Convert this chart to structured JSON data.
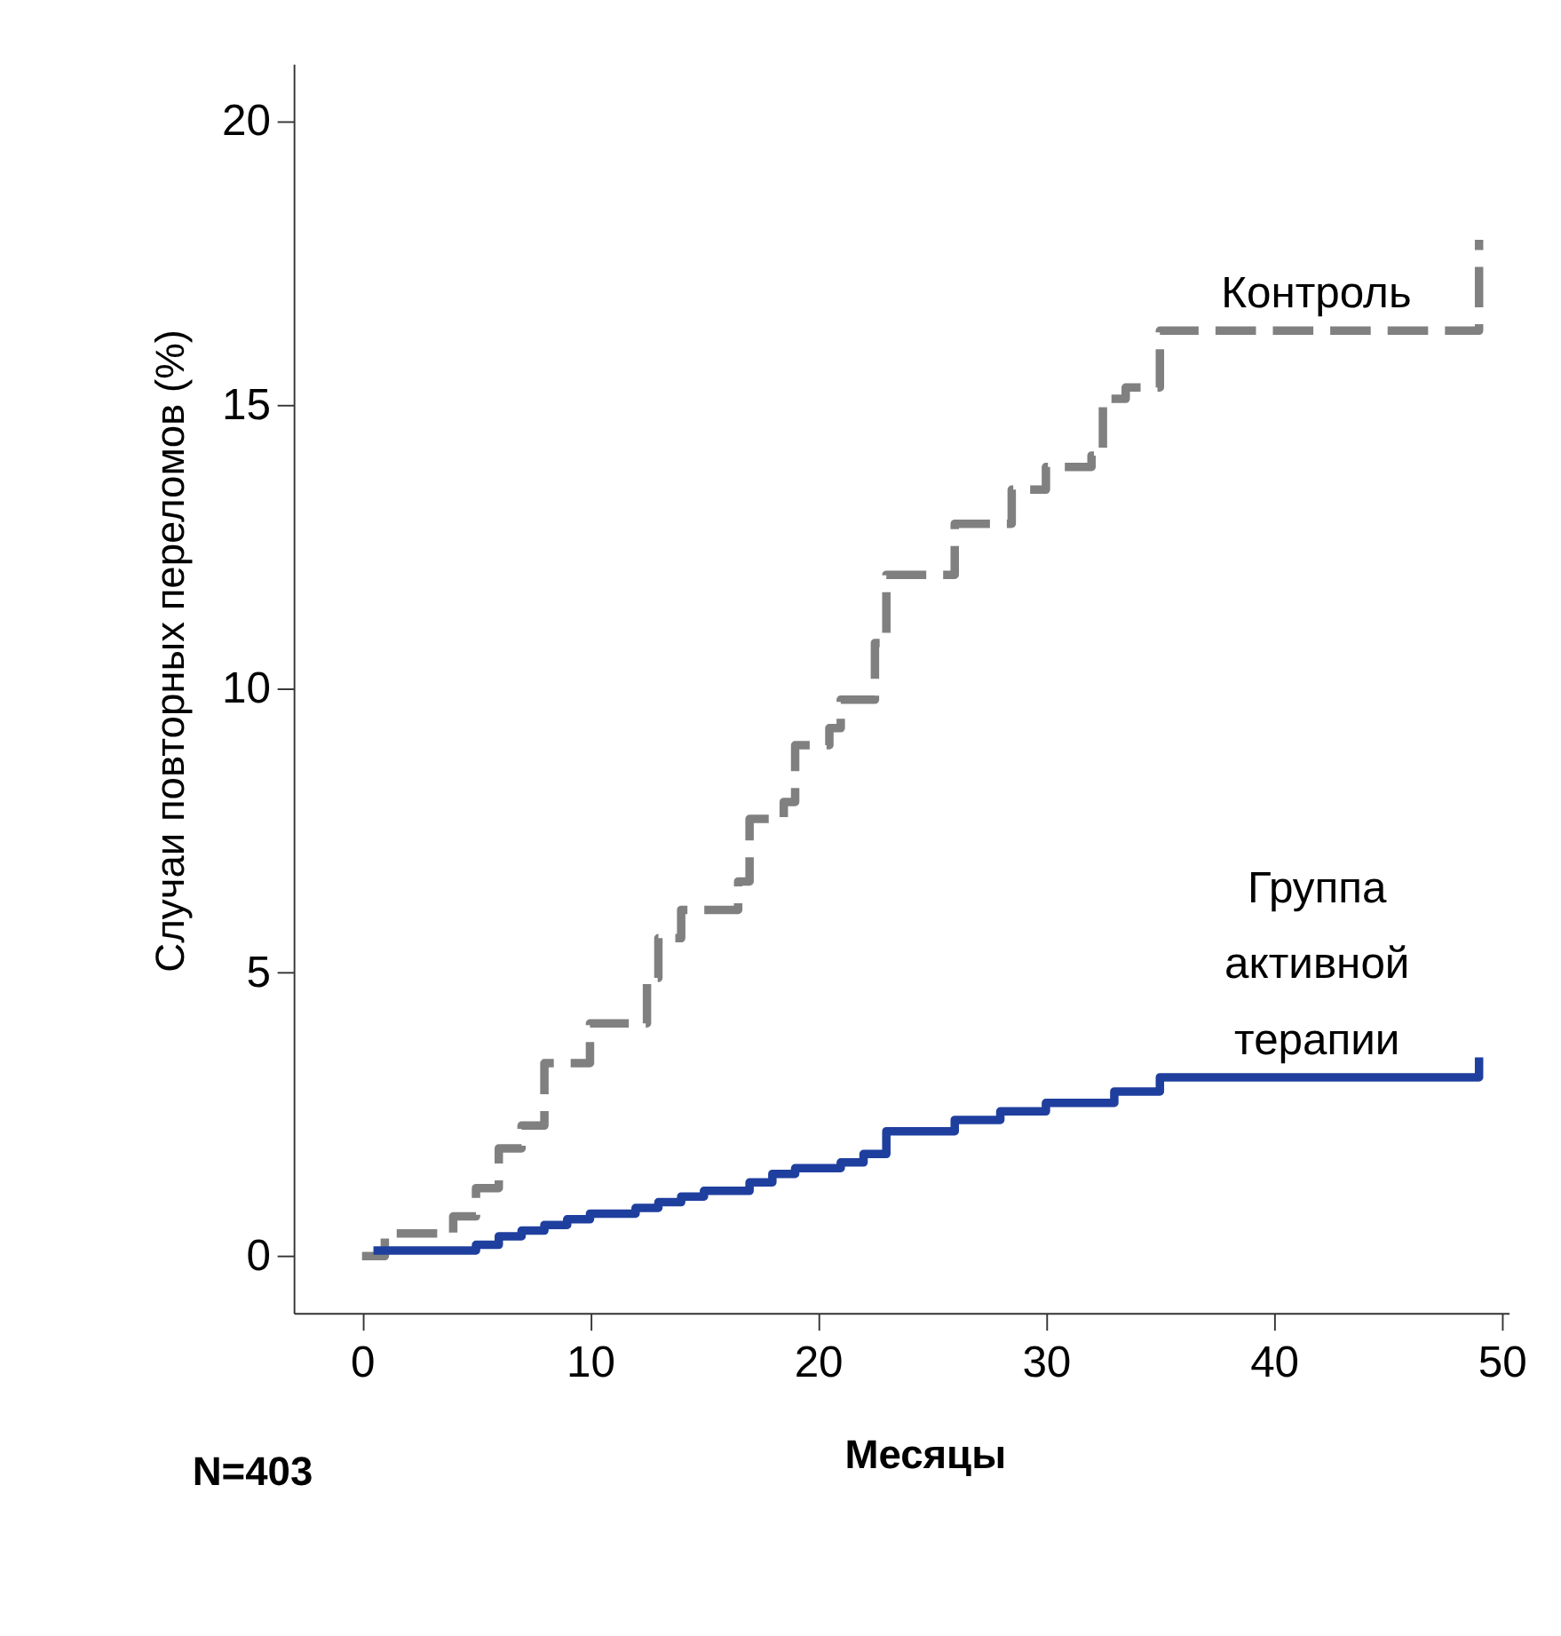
{
  "chart_data": {
    "type": "step",
    "ylabel": "Случаи повторных переломов (%)",
    "xlabel": "Месяцы",
    "xlim": [
      -3,
      50.3
    ],
    "ylim": [
      -1,
      21
    ],
    "xticks": [
      0,
      10,
      20,
      30,
      40,
      50
    ],
    "yticks": [
      0,
      5,
      10,
      15,
      20
    ],
    "grid": false,
    "marker": "none",
    "annotations": [
      "N=403"
    ],
    "series": [
      {
        "name": "Контроль",
        "color": "#808080",
        "line_style": "dashed",
        "x": [
          0,
          1,
          4,
          5,
          6,
          7,
          8,
          10,
          12.5,
          13,
          14,
          16.5,
          17,
          18.5,
          19,
          20.5,
          21,
          22.5,
          23,
          26,
          28.5,
          30,
          32,
          32.5,
          33.5,
          35,
          49,
          49
        ],
        "values": [
          0,
          0.4,
          0.7,
          1.2,
          1.9,
          2.3,
          3.4,
          4.1,
          4.9,
          5.6,
          6.1,
          6.6,
          7.7,
          8.0,
          9.0,
          9.3,
          9.8,
          10.8,
          12.0,
          12.9,
          13.5,
          13.9,
          14.1,
          15.1,
          15.3,
          16.3,
          16.3,
          17.9
        ]
      },
      {
        "name": "Группа активной терапии",
        "color": "#1f3f9f",
        "line_style": "solid",
        "x": [
          0.5,
          4,
          5,
          6,
          7,
          8,
          9,
          10,
          12,
          13,
          14,
          15,
          17,
          18,
          19,
          21,
          22,
          23,
          26,
          28,
          30,
          33,
          35,
          49,
          49
        ],
        "values": [
          0.1,
          0.1,
          0.2,
          0.35,
          0.45,
          0.55,
          0.65,
          0.75,
          0.85,
          0.95,
          1.05,
          1.15,
          1.3,
          1.45,
          1.55,
          1.65,
          1.8,
          2.2,
          2.4,
          2.55,
          2.7,
          2.9,
          3.15,
          3.15,
          3.5
        ]
      }
    ]
  }
}
